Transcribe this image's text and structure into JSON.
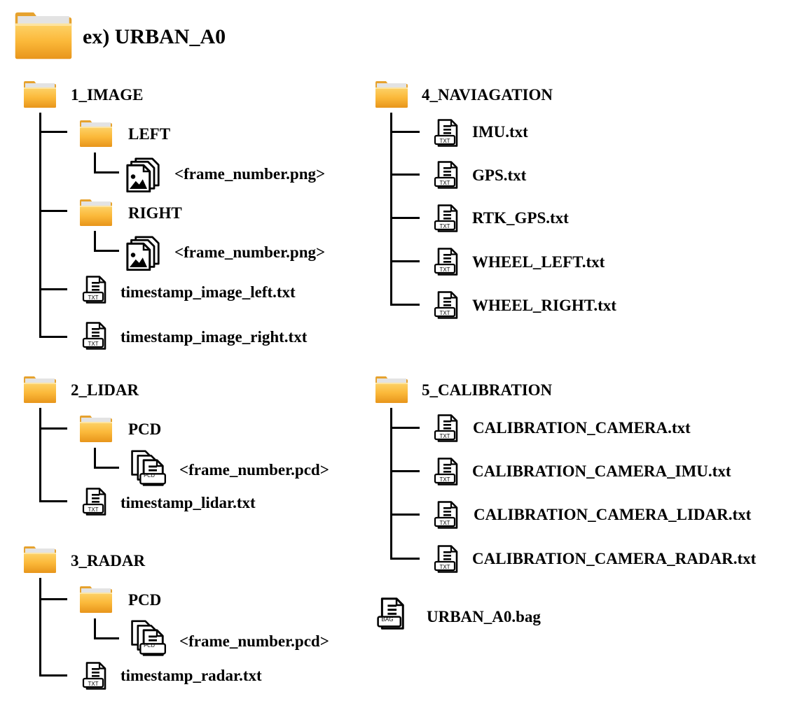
{
  "root": {
    "label": "ex) URBAN_A0"
  },
  "image": {
    "label": "1_IMAGE",
    "left": {
      "label": "LEFT",
      "file": "<frame_number.png>"
    },
    "right": {
      "label": "RIGHT",
      "file": "<frame_number.png>"
    },
    "ts_left": "timestamp_image_left.txt",
    "ts_right": "timestamp_image_right.txt"
  },
  "lidar": {
    "label": "2_LIDAR",
    "pcd": {
      "label": "PCD",
      "file": "<frame_number.pcd>"
    },
    "ts": "timestamp_lidar.txt"
  },
  "radar": {
    "label": "3_RADAR",
    "pcd": {
      "label": "PCD",
      "file": "<frame_number.pcd>"
    },
    "ts": "timestamp_radar.txt"
  },
  "navigation": {
    "label": "4_NAVIAGATION",
    "files": [
      "IMU.txt",
      "GPS.txt",
      "RTK_GPS.txt",
      "WHEEL_LEFT.txt",
      "WHEEL_RIGHT.txt"
    ]
  },
  "calibration": {
    "label": "5_CALIBRATION",
    "files": [
      "CALIBRATION_CAMERA.txt",
      "CALIBRATION_CAMERA_IMU.txt",
      "CALIBRATION_CAMERA_LIDAR.txt",
      "CALIBRATION_CAMERA_RADAR.txt"
    ]
  },
  "bag": {
    "label": "URBAN_A0.bag"
  },
  "icons": {
    "folder": "folder-icon",
    "text_file": "txt-file-icon",
    "image_files": "image-files-icon",
    "pcd_files": "pcd-files-icon",
    "bag_file": "bag-file-icon",
    "txt_badge": "TXT",
    "pcd_badge": "PCD",
    "bag_badge": "BAG"
  },
  "colors": {
    "folder_light": "#fcc34a",
    "folder_dark": "#e99a1c",
    "folder_tab": "#d9d9d9",
    "line": "#000000"
  }
}
